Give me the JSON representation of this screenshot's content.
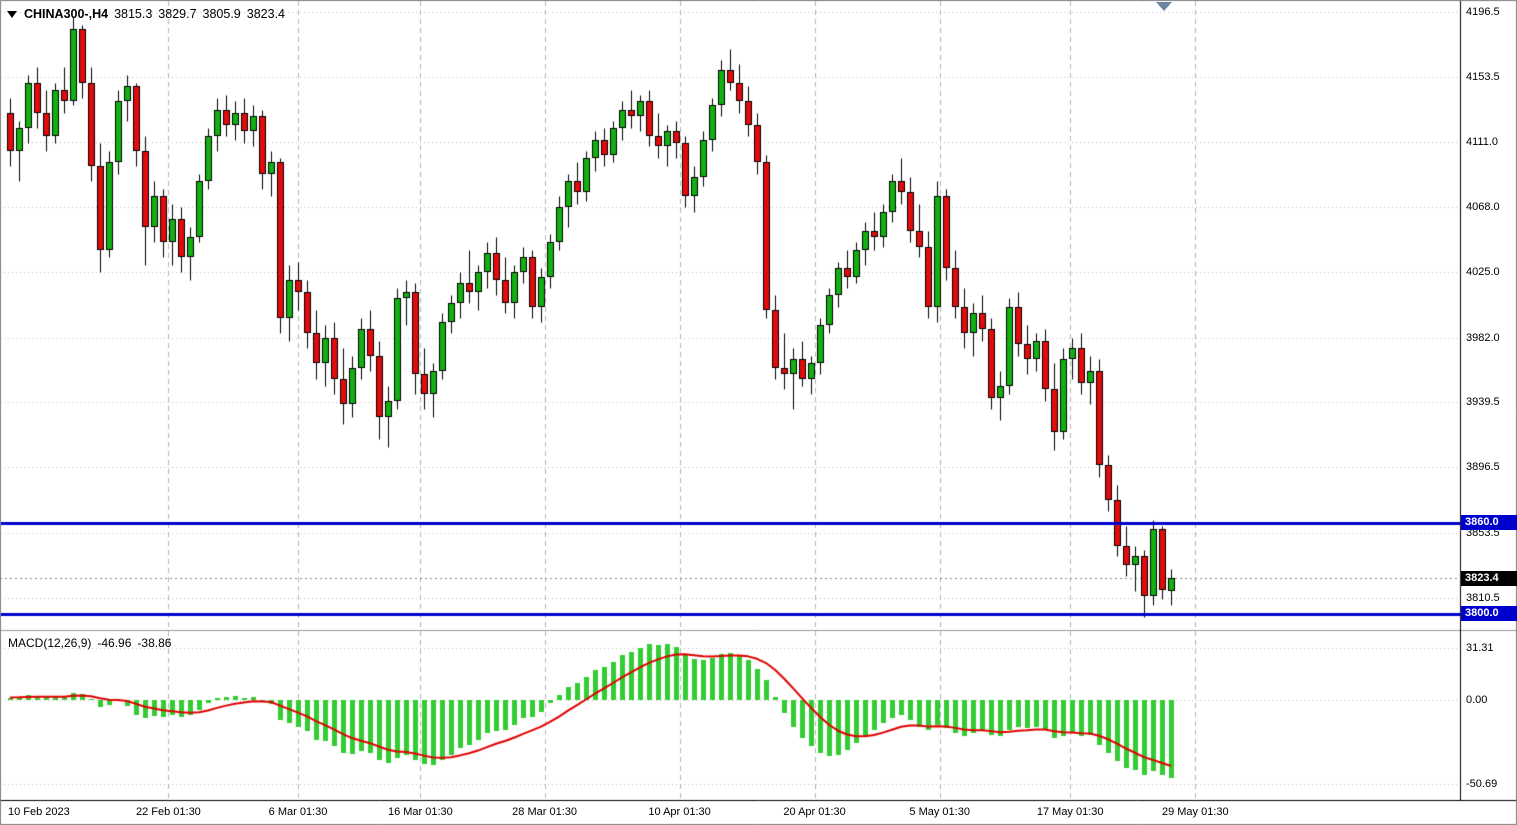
{
  "header": {
    "symbol_period": "CHINA300-,H4",
    "open": "3815.3",
    "high": "3829.7",
    "low": "3805.9",
    "close": "3823.4"
  },
  "price_axis": {
    "ticks": [
      "4196.5",
      "4153.5",
      "4111.0",
      "4068.0",
      "4025.0",
      "3982.0",
      "3939.5",
      "3896.5",
      "3853.5",
      "3810.5"
    ],
    "badges": [
      {
        "label": "3860.0",
        "price": 3860.0,
        "type": "level"
      },
      {
        "label": "3823.4",
        "price": 3823.4,
        "type": "last"
      },
      {
        "label": "3800.0",
        "price": 3800.0,
        "type": "level"
      }
    ]
  },
  "levels": [
    3860.0,
    3800.0
  ],
  "last_price": 3823.4,
  "macd_panel": {
    "label": "MACD(12,26,9)",
    "value_main": "-46.96",
    "value_signal": "-38.86",
    "axis_ticks": [
      "31.31",
      "0.00",
      "-50.69"
    ]
  },
  "x_axis": {
    "labels": [
      {
        "text": "10 Feb 2023",
        "i": 0
      },
      {
        "text": "22 Feb 01:30",
        "i": 17.6
      },
      {
        "text": "6 Mar 01:30",
        "i": 32
      },
      {
        "text": "16 Mar 01:30",
        "i": 45.6
      },
      {
        "text": "28 Mar 01:30",
        "i": 59.4
      },
      {
        "text": "10 Apr 01:30",
        "i": 74.4
      },
      {
        "text": "20 Apr 01:30",
        "i": 89.4
      },
      {
        "text": "5 May 01:30",
        "i": 103.3
      },
      {
        "text": "17 May 01:30",
        "i": 117.8
      },
      {
        "text": "29 May 01:30",
        "i": 131.7
      }
    ]
  },
  "colors": {
    "bull_body": "#12b112",
    "bear_body": "#e30b0b",
    "candle_outline": "#000000",
    "macd_bar": "#33cc33",
    "signal_line": "#e00000",
    "level_line": "#0000cd",
    "grid": "#c2c2c2",
    "vgrid": "#b4b4b4",
    "last_price_line": "#888888",
    "frame": "#000000"
  },
  "chart_data": {
    "type": "candlestick+macd",
    "title": "CHINA300-,H4",
    "timeframe": "H4",
    "price_range": [
      3800.0,
      4196.5
    ],
    "macd_range": [
      -50.69,
      31.31
    ],
    "candles": [
      [
        4130,
        4140,
        4095,
        4105
      ],
      [
        4105,
        4125,
        4085,
        4120
      ],
      [
        4120,
        4155,
        4110,
        4150
      ],
      [
        4150,
        4160,
        4120,
        4130
      ],
      [
        4130,
        4145,
        4105,
        4115
      ],
      [
        4115,
        4150,
        4110,
        4145
      ],
      [
        4145,
        4160,
        4130,
        4138
      ],
      [
        4138,
        4193,
        4135,
        4185
      ],
      [
        4185,
        4188,
        4140,
        4150
      ],
      [
        4150,
        4160,
        4085,
        4095
      ],
      [
        4095,
        4110,
        4025,
        4040
      ],
      [
        4040,
        4105,
        4035,
        4098
      ],
      [
        4098,
        4145,
        4090,
        4138
      ],
      [
        4138,
        4155,
        4125,
        4148
      ],
      [
        4148,
        4150,
        4095,
        4105
      ],
      [
        4105,
        4115,
        4030,
        4055
      ],
      [
        4055,
        4085,
        4045,
        4075
      ],
      [
        4075,
        4080,
        4035,
        4045
      ],
      [
        4045,
        4070,
        4030,
        4060
      ],
      [
        4060,
        4068,
        4025,
        4035
      ],
      [
        4035,
        4055,
        4020,
        4048
      ],
      [
        4048,
        4090,
        4045,
        4085
      ],
      [
        4085,
        4120,
        4080,
        4115
      ],
      [
        4115,
        4140,
        4105,
        4132
      ],
      [
        4132,
        4142,
        4115,
        4122
      ],
      [
        4122,
        4138,
        4112,
        4130
      ],
      [
        4130,
        4140,
        4110,
        4118
      ],
      [
        4118,
        4135,
        4108,
        4128
      ],
      [
        4128,
        4132,
        4080,
        4090
      ],
      [
        4090,
        4105,
        4075,
        4098
      ],
      [
        4098,
        4100,
        3985,
        3995
      ],
      [
        3995,
        4030,
        3980,
        4020
      ],
      [
        4020,
        4032,
        4000,
        4012
      ],
      [
        4012,
        4020,
        3975,
        3985
      ],
      [
        3985,
        4000,
        3955,
        3965
      ],
      [
        3965,
        3990,
        3950,
        3982
      ],
      [
        3982,
        3992,
        3945,
        3955
      ],
      [
        3955,
        3975,
        3925,
        3938
      ],
      [
        3938,
        3970,
        3930,
        3962
      ],
      [
        3962,
        3995,
        3955,
        3988
      ],
      [
        3988,
        4000,
        3960,
        3970
      ],
      [
        3970,
        3980,
        3915,
        3930
      ],
      [
        3930,
        3950,
        3910,
        3940
      ],
      [
        3940,
        4015,
        3935,
        4008
      ],
      [
        4008,
        4020,
        3990,
        4012
      ],
      [
        4012,
        4018,
        3945,
        3958
      ],
      [
        3958,
        3975,
        3935,
        3945
      ],
      [
        3945,
        3965,
        3930,
        3960
      ],
      [
        3960,
        3998,
        3955,
        3992
      ],
      [
        3992,
        4010,
        3985,
        4005
      ],
      [
        4005,
        4025,
        3995,
        4018
      ],
      [
        4018,
        4040,
        4005,
        4012
      ],
      [
        4012,
        4030,
        4000,
        4025
      ],
      [
        4025,
        4045,
        4015,
        4038
      ],
      [
        4038,
        4048,
        4010,
        4020
      ],
      [
        4020,
        4035,
        3998,
        4005
      ],
      [
        4005,
        4030,
        3995,
        4025
      ],
      [
        4025,
        4042,
        4018,
        4035
      ],
      [
        4035,
        4040,
        3995,
        4002
      ],
      [
        4002,
        4028,
        3992,
        4022
      ],
      [
        4022,
        4050,
        4015,
        4045
      ],
      [
        4045,
        4075,
        4040,
        4068
      ],
      [
        4068,
        4090,
        4055,
        4085
      ],
      [
        4085,
        4098,
        4070,
        4078
      ],
      [
        4078,
        4105,
        4072,
        4100
      ],
      [
        4100,
        4118,
        4092,
        4112
      ],
      [
        4112,
        4120,
        4095,
        4102
      ],
      [
        4102,
        4125,
        4098,
        4120
      ],
      [
        4120,
        4138,
        4112,
        4132
      ],
      [
        4132,
        4145,
        4120,
        4128
      ],
      [
        4128,
        4142,
        4118,
        4138
      ],
      [
        4138,
        4145,
        4108,
        4115
      ],
      [
        4115,
        4130,
        4100,
        4108
      ],
      [
        4108,
        4122,
        4095,
        4118
      ],
      [
        4118,
        4125,
        4100,
        4110
      ],
      [
        4110,
        4115,
        4068,
        4075
      ],
      [
        4075,
        4095,
        4065,
        4088
      ],
      [
        4088,
        4118,
        4082,
        4112
      ],
      [
        4112,
        4140,
        4105,
        4135
      ],
      [
        4135,
        4165,
        4128,
        4158
      ],
      [
        4158,
        4172,
        4145,
        4150
      ],
      [
        4150,
        4162,
        4130,
        4138
      ],
      [
        4138,
        4148,
        4115,
        4122
      ],
      [
        4122,
        4130,
        4090,
        4098
      ],
      [
        4098,
        4102,
        3995,
        4000
      ],
      [
        4000,
        4010,
        3955,
        3962
      ],
      [
        3962,
        3985,
        3948,
        3958
      ],
      [
        3958,
        3975,
        3935,
        3968
      ],
      [
        3968,
        3980,
        3950,
        3955
      ],
      [
        3955,
        3970,
        3945,
        3965
      ],
      [
        3965,
        3995,
        3958,
        3990
      ],
      [
        3990,
        4015,
        3985,
        4010
      ],
      [
        4010,
        4032,
        4002,
        4028
      ],
      [
        4028,
        4040,
        4015,
        4022
      ],
      [
        4022,
        4045,
        4018,
        4040
      ],
      [
        4040,
        4058,
        4030,
        4052
      ],
      [
        4052,
        4065,
        4040,
        4048
      ],
      [
        4048,
        4070,
        4042,
        4065
      ],
      [
        4065,
        4090,
        4058,
        4085
      ],
      [
        4085,
        4100,
        4070,
        4078
      ],
      [
        4078,
        4088,
        4045,
        4052
      ],
      [
        4052,
        4070,
        4035,
        4042
      ],
      [
        4042,
        4052,
        3995,
        4002
      ],
      [
        4002,
        4085,
        3992,
        4075
      ],
      [
        4075,
        4080,
        4020,
        4028
      ],
      [
        4028,
        4040,
        3995,
        4002
      ],
      [
        4002,
        4015,
        3975,
        3985
      ],
      [
        3985,
        4005,
        3970,
        3998
      ],
      [
        3998,
        4010,
        3980,
        3988
      ],
      [
        3988,
        3995,
        3935,
        3942
      ],
      [
        3942,
        3960,
        3928,
        3950
      ],
      [
        3950,
        4008,
        3945,
        4002
      ],
      [
        4002,
        4012,
        3970,
        3978
      ],
      [
        3978,
        3990,
        3958,
        3968
      ],
      [
        3968,
        3985,
        3960,
        3980
      ],
      [
        3980,
        3988,
        3940,
        3948
      ],
      [
        3948,
        3965,
        3908,
        3920
      ],
      [
        3920,
        3975,
        3915,
        3968
      ],
      [
        3968,
        3982,
        3955,
        3975
      ],
      [
        3975,
        3985,
        3945,
        3952
      ],
      [
        3952,
        3970,
        3938,
        3960
      ],
      [
        3960,
        3968,
        3890,
        3898
      ],
      [
        3898,
        3905,
        3868,
        3875
      ],
      [
        3875,
        3885,
        3838,
        3845
      ],
      [
        3845,
        3858,
        3825,
        3832
      ],
      [
        3832,
        3845,
        3815,
        3838
      ],
      [
        3838,
        3842,
        3798,
        3812
      ],
      [
        3812,
        3862,
        3806,
        3856
      ],
      [
        3856,
        3858,
        3810,
        3816
      ],
      [
        3815.3,
        3829.7,
        3805.9,
        3823.4
      ]
    ],
    "macd_hist": [
      1.5,
      2.0,
      3.0,
      2.5,
      1.8,
      2.2,
      2.0,
      4.5,
      3.5,
      0.5,
      -4.0,
      -3.0,
      -0.5,
      -3.5,
      -9.0,
      -11.0,
      -9.5,
      -10.5,
      -9.0,
      -10.0,
      -9.0,
      -6.0,
      -2.0,
      1.5,
      2.0,
      2.5,
      1.5,
      2.0,
      -1.5,
      -2.5,
      -12.0,
      -14.0,
      -16.0,
      -19.0,
      -24.0,
      -25.0,
      -28.0,
      -32.0,
      -32.5,
      -31.0,
      -32.0,
      -36.0,
      -38.0,
      -35.0,
      -33.0,
      -36.0,
      -38.5,
      -39.0,
      -36.0,
      -33.0,
      -29.0,
      -27.0,
      -24.0,
      -20.0,
      -18.5,
      -18.0,
      -15.0,
      -11.0,
      -10.0,
      -7.0,
      -2.0,
      3.0,
      8.0,
      10.0,
      14.0,
      18.0,
      20.0,
      23.0,
      27.0,
      29.0,
      31.5,
      33.5,
      33.0,
      33.5,
      32.0,
      28.0,
      25.0,
      24.0,
      25.5,
      27.5,
      28.5,
      27.0,
      24.0,
      19.0,
      12.0,
      2.0,
      -8.0,
      -16.0,
      -23.0,
      -28.0,
      -32.0,
      -34.0,
      -33.0,
      -30.0,
      -26.0,
      -22.0,
      -18.0,
      -14.0,
      -11.0,
      -9.0,
      -12.0,
      -16.0,
      -18.0,
      -15.0,
      -17.0,
      -20.0,
      -22.0,
      -20.0,
      -18.0,
      -21.0,
      -22.0,
      -18.0,
      -16.0,
      -17.0,
      -16.0,
      -18.0,
      -23.0,
      -22.0,
      -20.0,
      -22.0,
      -21.0,
      -27.0,
      -32.0,
      -37.0,
      -41.0,
      -42.0,
      -45.0,
      -43.0,
      -45.5,
      -46.96
    ]
  }
}
